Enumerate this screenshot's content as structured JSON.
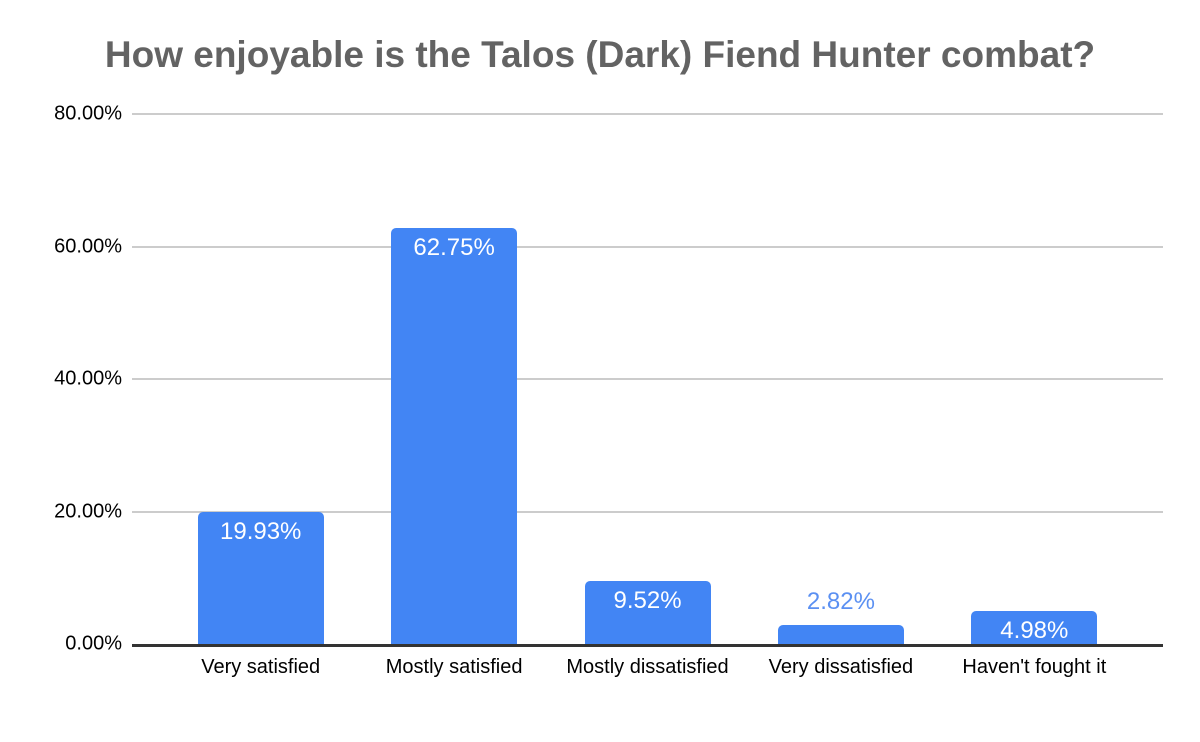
{
  "title": {
    "text": "How enjoyable is the Talos (Dark) Fiend Hunter combat?",
    "color": "#636363"
  },
  "axes": {
    "gridline_color": "#cccccc",
    "baseline_color": "#333333",
    "tick_text_color": "#000000"
  },
  "chart_data": {
    "type": "bar",
    "title": "How enjoyable is the Talos (Dark) Fiend Hunter combat?",
    "categories": [
      "Very satisfied",
      "Mostly satisfied",
      "Mostly dissatisfied",
      "Very dissatisfied",
      "Haven't fought it"
    ],
    "values": [
      19.93,
      62.75,
      9.52,
      2.82,
      4.98
    ],
    "data_labels": [
      "19.93%",
      "62.75%",
      "9.52%",
      "2.82%",
      "4.98%"
    ],
    "data_label_placement": [
      "inside",
      "inside",
      "inside",
      "outside",
      "inside"
    ],
    "xlabel": "",
    "ylabel": "",
    "ylim": [
      0,
      80
    ],
    "yticks": [
      0,
      20,
      40,
      60,
      80
    ],
    "ytick_labels": [
      "0.00%",
      "20.00%",
      "40.00%",
      "60.00%",
      "80.00%"
    ],
    "grid": true,
    "legend": "none",
    "bar_color": "#4285F4",
    "inside_label_color": "#ffffff",
    "outside_label_color": "#5b90f2"
  }
}
